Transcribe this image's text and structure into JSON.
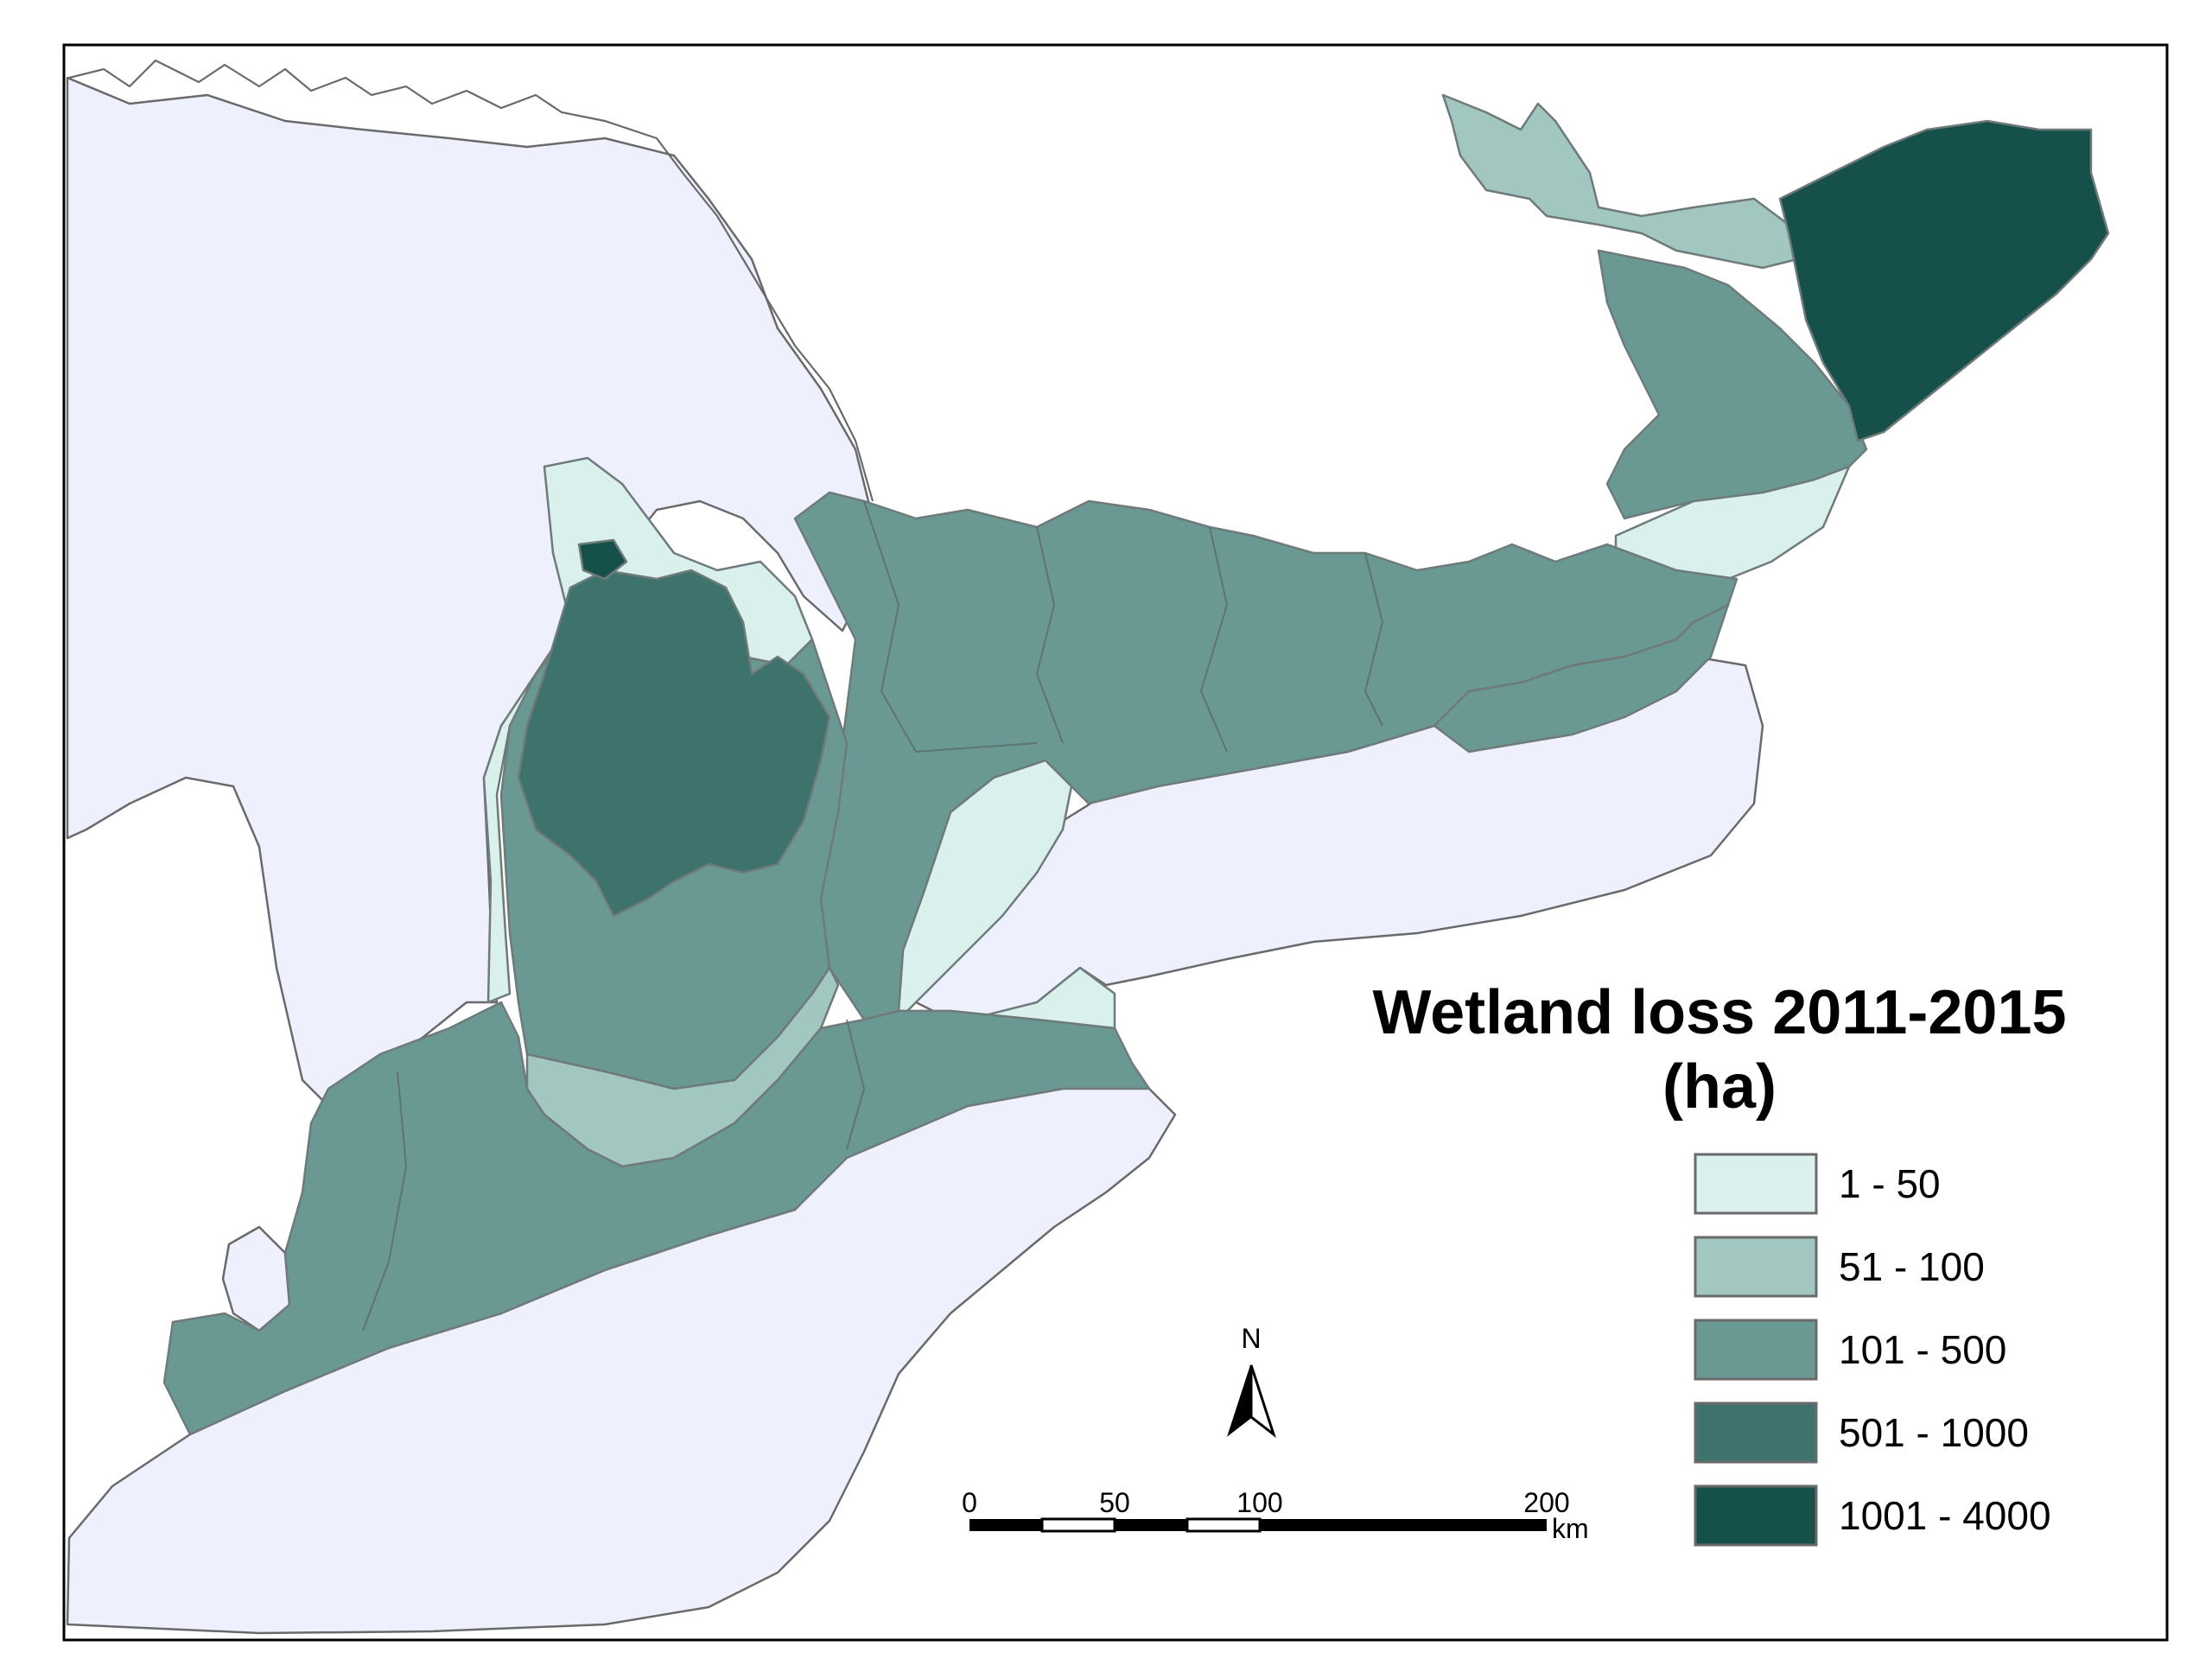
{
  "map": {
    "title_line1": "Wetland loss 2011-2015",
    "title_line2": "(ha)"
  },
  "legend": {
    "classes": [
      {
        "label": "1 - 50",
        "color": "#d9f0ec"
      },
      {
        "label": "51 - 100",
        "color": "#a2c6c0"
      },
      {
        "label": "101 - 500",
        "color": "#6a9892"
      },
      {
        "label": "501 - 1000",
        "color": "#3e726c"
      },
      {
        "label": "1001 - 4000",
        "color": "#16504a"
      }
    ]
  },
  "water_color": "#eef0fd",
  "north_arrow": {
    "label": "N"
  },
  "scale_bar": {
    "ticks": [
      "0",
      "50",
      "100",
      "200"
    ],
    "unit": "km"
  }
}
